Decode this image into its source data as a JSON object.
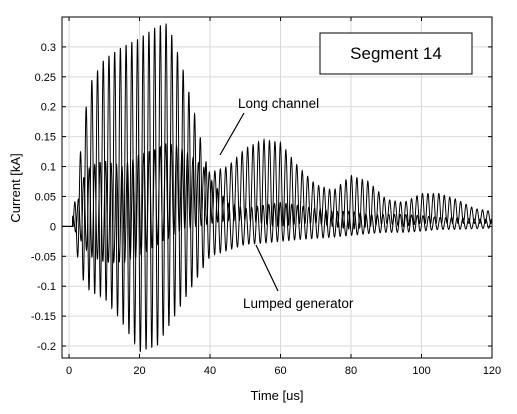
{
  "chart_data": {
    "type": "line",
    "title": "",
    "xlabel": "Time [us]",
    "ylabel": "Current [kA]",
    "xlim": [
      -2,
      120
    ],
    "ylim": [
      -0.22,
      0.35
    ],
    "xticks": [
      0,
      20,
      40,
      60,
      80,
      100,
      120
    ],
    "yticks": [
      -0.2,
      -0.15,
      -0.1,
      -0.05,
      0,
      0.05,
      0.1,
      0.15,
      0.2,
      0.25,
      0.3
    ],
    "ytick_labels": [
      "-0.2",
      "-0.15",
      "-0.1",
      "-0.05",
      "0",
      "0.05",
      "0.1",
      "0.15",
      "0.2",
      "0.25",
      "0.3"
    ],
    "grid": true,
    "legend": "none",
    "box_label": "Segment 14",
    "annotations": [
      {
        "text": "Long channel",
        "points_to": "upper oscillation envelope near t≈43 us"
      },
      {
        "text": "Lumped generator",
        "points_to": "lower oscillation near t≈53 us"
      }
    ],
    "series": [
      {
        "name": "Lumped generator",
        "color": "#000000",
        "envelope": {
          "t": [
            0,
            2,
            4,
            6,
            10,
            15,
            20,
            25,
            28,
            32,
            36,
            40,
            45,
            50,
            55,
            60,
            65,
            70,
            75,
            80,
            85,
            90,
            95,
            100,
            105,
            110,
            115,
            120
          ],
          "max": [
            0.002,
            0.05,
            0.17,
            0.24,
            0.28,
            0.3,
            0.315,
            0.335,
            0.34,
            0.27,
            0.18,
            0.08,
            0.04,
            0.03,
            0.035,
            0.04,
            0.035,
            0.03,
            0.025,
            0.025,
            0.02,
            0.02,
            0.02,
            0.018,
            0.015,
            0.015,
            0.012,
            0.012
          ],
          "min": [
            -0.002,
            -0.04,
            -0.09,
            -0.11,
            -0.12,
            -0.16,
            -0.21,
            -0.2,
            -0.17,
            -0.13,
            -0.09,
            -0.05,
            -0.04,
            -0.03,
            -0.028,
            -0.025,
            -0.022,
            -0.02,
            -0.018,
            -0.015,
            -0.012,
            -0.01,
            -0.01,
            -0.008,
            -0.005,
            -0.005,
            -0.004,
            -0.003
          ]
        }
      },
      {
        "name": "Long channel",
        "color": "#000000",
        "envelope": {
          "t": [
            0,
            2,
            4,
            6,
            10,
            15,
            20,
            25,
            28,
            32,
            36,
            40,
            45,
            50,
            55,
            60,
            65,
            70,
            75,
            80,
            85,
            90,
            95,
            100,
            105,
            110,
            115,
            120
          ],
          "max": [
            0.002,
            0.03,
            0.08,
            0.1,
            0.11,
            0.1,
            0.12,
            0.13,
            0.14,
            0.13,
            0.11,
            0.09,
            0.1,
            0.13,
            0.145,
            0.14,
            0.1,
            0.07,
            0.06,
            0.085,
            0.075,
            0.045,
            0.04,
            0.055,
            0.055,
            0.045,
            0.03,
            0.025
          ],
          "min": [
            -0.002,
            -0.01,
            -0.03,
            -0.05,
            -0.06,
            -0.06,
            -0.05,
            -0.03,
            -0.02,
            -0.005,
            0.0,
            0.005,
            0.01,
            0.01,
            0.005,
            0.0,
            0.005,
            0.005,
            0.0,
            -0.005,
            0.0,
            0.005,
            0.0,
            0.005,
            0.005,
            0.005,
            0.005,
            0.005
          ]
        }
      }
    ]
  }
}
